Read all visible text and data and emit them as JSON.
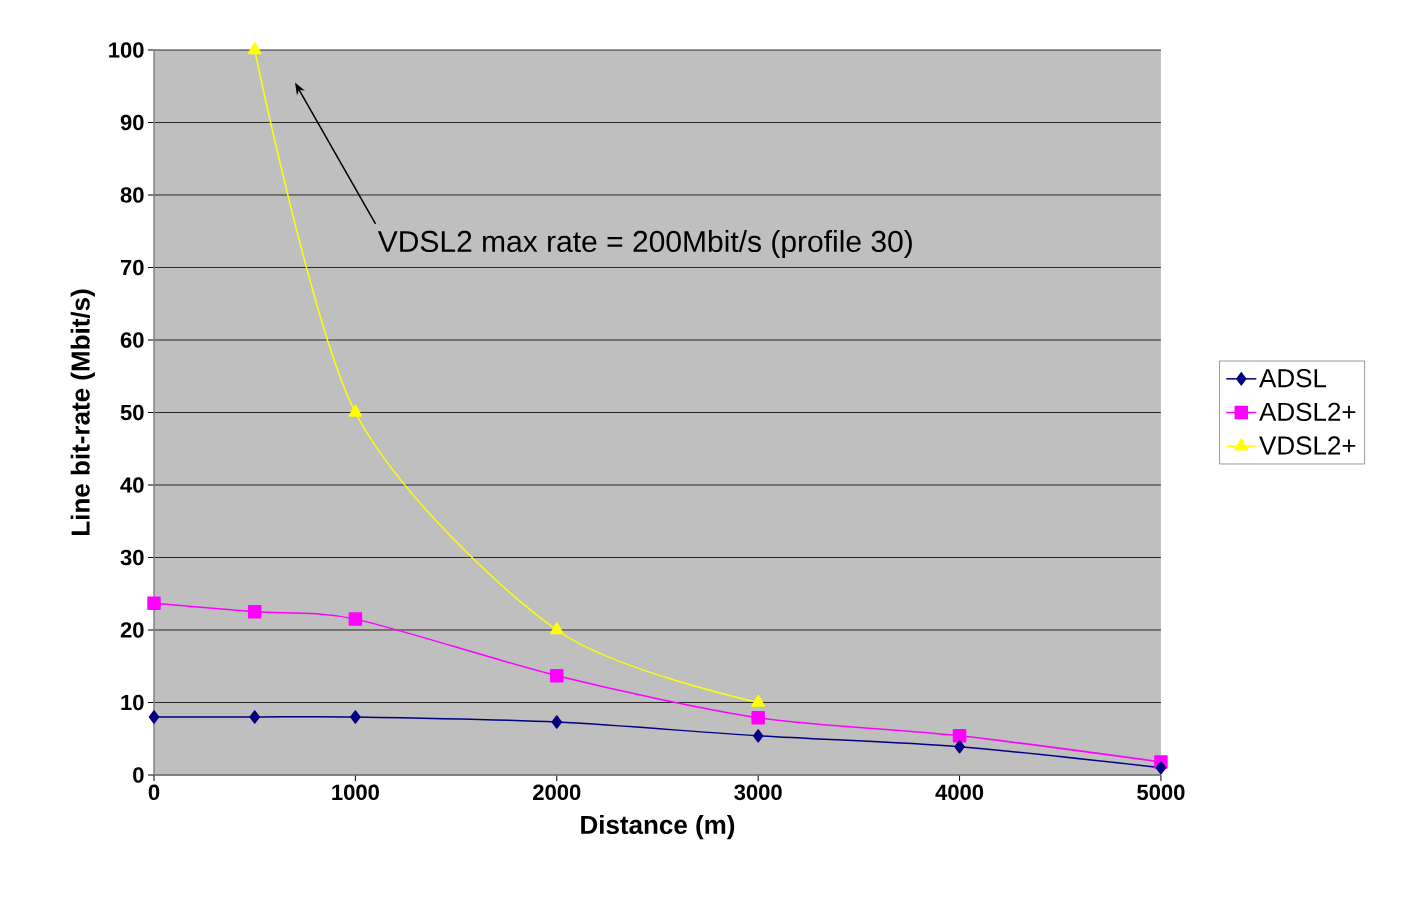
{
  "chart_data": {
    "type": "line",
    "xlabel": "Distance (m)",
    "ylabel": "Line bit-rate (Mbit/s)",
    "xlim": [
      0,
      5000
    ],
    "ylim": [
      0,
      100
    ],
    "xticks": [
      0,
      1000,
      2000,
      3000,
      4000,
      5000
    ],
    "yticks": [
      0,
      10,
      20,
      30,
      40,
      50,
      60,
      70,
      80,
      90,
      100
    ],
    "grid": "y",
    "legend": "right",
    "annotations": [
      "VDSL2 max rate = 200Mbit/s (profile 30)"
    ],
    "series": [
      {
        "name": "ADSL",
        "color": "#000080",
        "marker": "diamond",
        "x": [
          0,
          500,
          1000,
          2000,
          3000,
          4000,
          5000
        ],
        "values": [
          8,
          8,
          8,
          7.3,
          5.4,
          3.9,
          1
        ]
      },
      {
        "name": "ADSL2+",
        "color": "#ff00ff",
        "marker": "square",
        "x": [
          0,
          500,
          1000,
          2000,
          3000,
          4000,
          5000
        ],
        "values": [
          23.7,
          22.5,
          21.5,
          13.7,
          7.9,
          5.4,
          1.8
        ]
      },
      {
        "name": "VDSL2+",
        "color": "#ffff00",
        "marker": "triangle",
        "x": [
          500,
          1000,
          2000,
          3000
        ],
        "values": [
          100,
          50,
          20,
          10
        ]
      }
    ]
  }
}
